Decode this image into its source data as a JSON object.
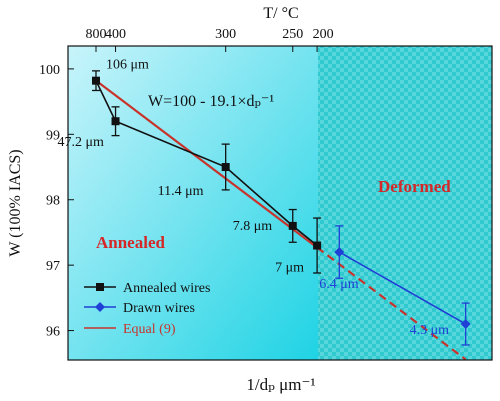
{
  "chart_data": {
    "type": "line",
    "xlabel": "1/dₚ  μm⁻¹",
    "ylabel": "W (100% IACS)",
    "top_axis_label": "T/ °C",
    "top_ticks": [
      "800",
      "400",
      "300",
      "250",
      "200"
    ],
    "yticks": [
      96,
      97,
      98,
      99,
      100
    ],
    "ylim": [
      95.55,
      100.35
    ],
    "equation": "W=100 - 19.1×dₚ⁻¹",
    "regions": [
      {
        "name": "Annealed",
        "color": "#d62728"
      },
      {
        "name": "Deformed",
        "color": "#d62728"
      }
    ],
    "series": [
      {
        "name": "Annealed wires",
        "color": "#111111",
        "marker": "square",
        "x": [
          0.0094,
          0.0212,
          0.0877,
          0.1282,
          0.1429
        ],
        "y": [
          99.82,
          99.2,
          98.5,
          97.6,
          97.3
        ],
        "err": [
          0.15,
          0.22,
          0.35,
          0.25,
          0.42
        ],
        "labels": [
          "106 μm",
          "47.2 μm",
          "11.4 μm",
          "7.8 μm",
          "7 μm"
        ]
      },
      {
        "name": "Drawn wires",
        "color": "#1f3fd6",
        "marker": "diamond",
        "x": [
          0.1563,
          0.2326
        ],
        "y": [
          97.2,
          96.1
        ],
        "err": [
          0.4,
          0.32
        ],
        "labels": [
          "6.4 μm",
          "4.3 μm"
        ]
      },
      {
        "name": "Equal (9)",
        "color": "#c8332b",
        "marker": "none"
      }
    ]
  }
}
